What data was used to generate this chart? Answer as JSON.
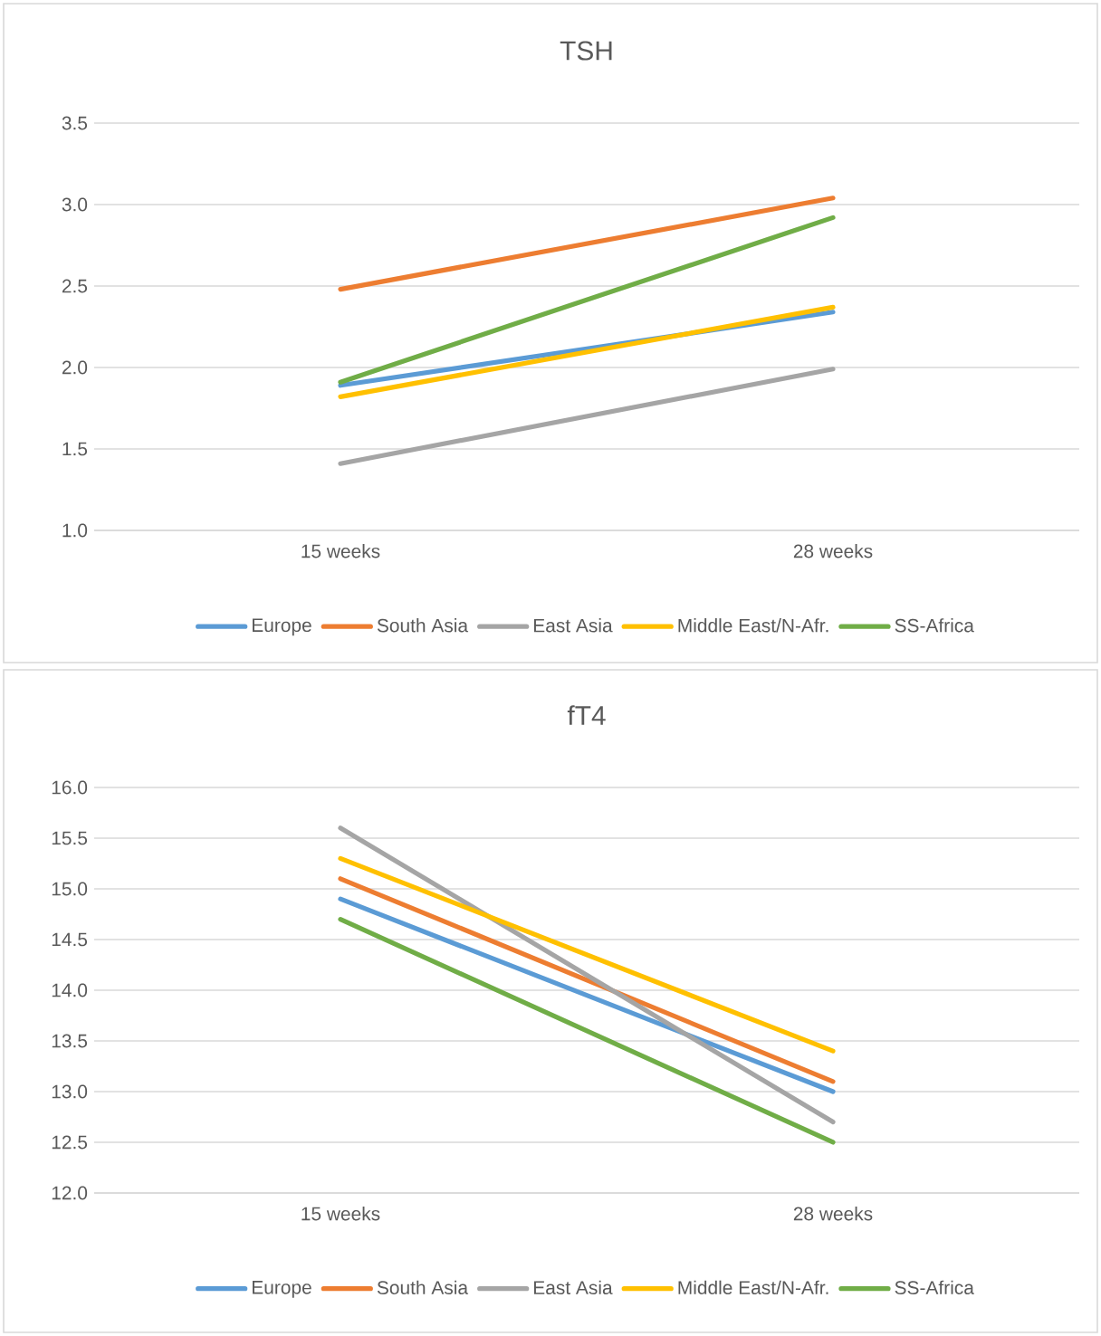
{
  "chart_data": [
    {
      "type": "line",
      "title": "TSH",
      "categories": [
        "15 weeks",
        "28 weeks"
      ],
      "ylim": [
        1.0,
        3.5
      ],
      "yticks": [
        {
          "value": 1.0,
          "label": "1.0"
        },
        {
          "value": 1.5,
          "label": "1.5"
        },
        {
          "value": 2.0,
          "label": "2.0"
        },
        {
          "value": 2.5,
          "label": "2.5"
        },
        {
          "value": 3.0,
          "label": "3.0"
        },
        {
          "value": 3.5,
          "label": "3.5"
        }
      ],
      "grid": "y",
      "legend": "bottom",
      "marker": "none",
      "line_style": "solid",
      "series": [
        {
          "name": "Europe",
          "color": "#5b9bd5",
          "values": [
            1.89,
            2.34
          ]
        },
        {
          "name": "South Asia",
          "color": "#ed7d31",
          "values": [
            2.48,
            3.04
          ]
        },
        {
          "name": "East Asia",
          "color": "#a5a5a5",
          "values": [
            1.41,
            1.99
          ]
        },
        {
          "name": "Middle East/N-Afr.",
          "color": "#ffc000",
          "values": [
            1.82,
            2.37
          ]
        },
        {
          "name": "SS-Africa",
          "color": "#70ad47",
          "values": [
            1.91,
            2.92
          ]
        }
      ]
    },
    {
      "type": "line",
      "title": "fT4",
      "categories": [
        "15 weeks",
        "28 weeks"
      ],
      "ylim": [
        12.0,
        16.0
      ],
      "yticks": [
        {
          "value": 12.0,
          "label": "12.0"
        },
        {
          "value": 12.5,
          "label": "12.5"
        },
        {
          "value": 13.0,
          "label": "13.0"
        },
        {
          "value": 13.5,
          "label": "13.5"
        },
        {
          "value": 14.0,
          "label": "14.0"
        },
        {
          "value": 14.5,
          "label": "14.5"
        },
        {
          "value": 15.0,
          "label": "15.0"
        },
        {
          "value": 15.5,
          "label": "15.5"
        },
        {
          "value": 16.0,
          "label": "16.0"
        }
      ],
      "grid": "y",
      "legend": "bottom",
      "marker": "none",
      "line_style": "solid",
      "series": [
        {
          "name": "Europe",
          "color": "#5b9bd5",
          "values": [
            14.9,
            13.0
          ]
        },
        {
          "name": "South Asia",
          "color": "#ed7d31",
          "values": [
            15.1,
            13.1
          ]
        },
        {
          "name": "East Asia",
          "color": "#a5a5a5",
          "values": [
            15.6,
            12.7
          ]
        },
        {
          "name": "Middle East/N-Afr.",
          "color": "#ffc000",
          "values": [
            15.3,
            13.4
          ]
        },
        {
          "name": "SS-Africa",
          "color": "#70ad47",
          "values": [
            14.7,
            12.5
          ]
        }
      ]
    }
  ]
}
